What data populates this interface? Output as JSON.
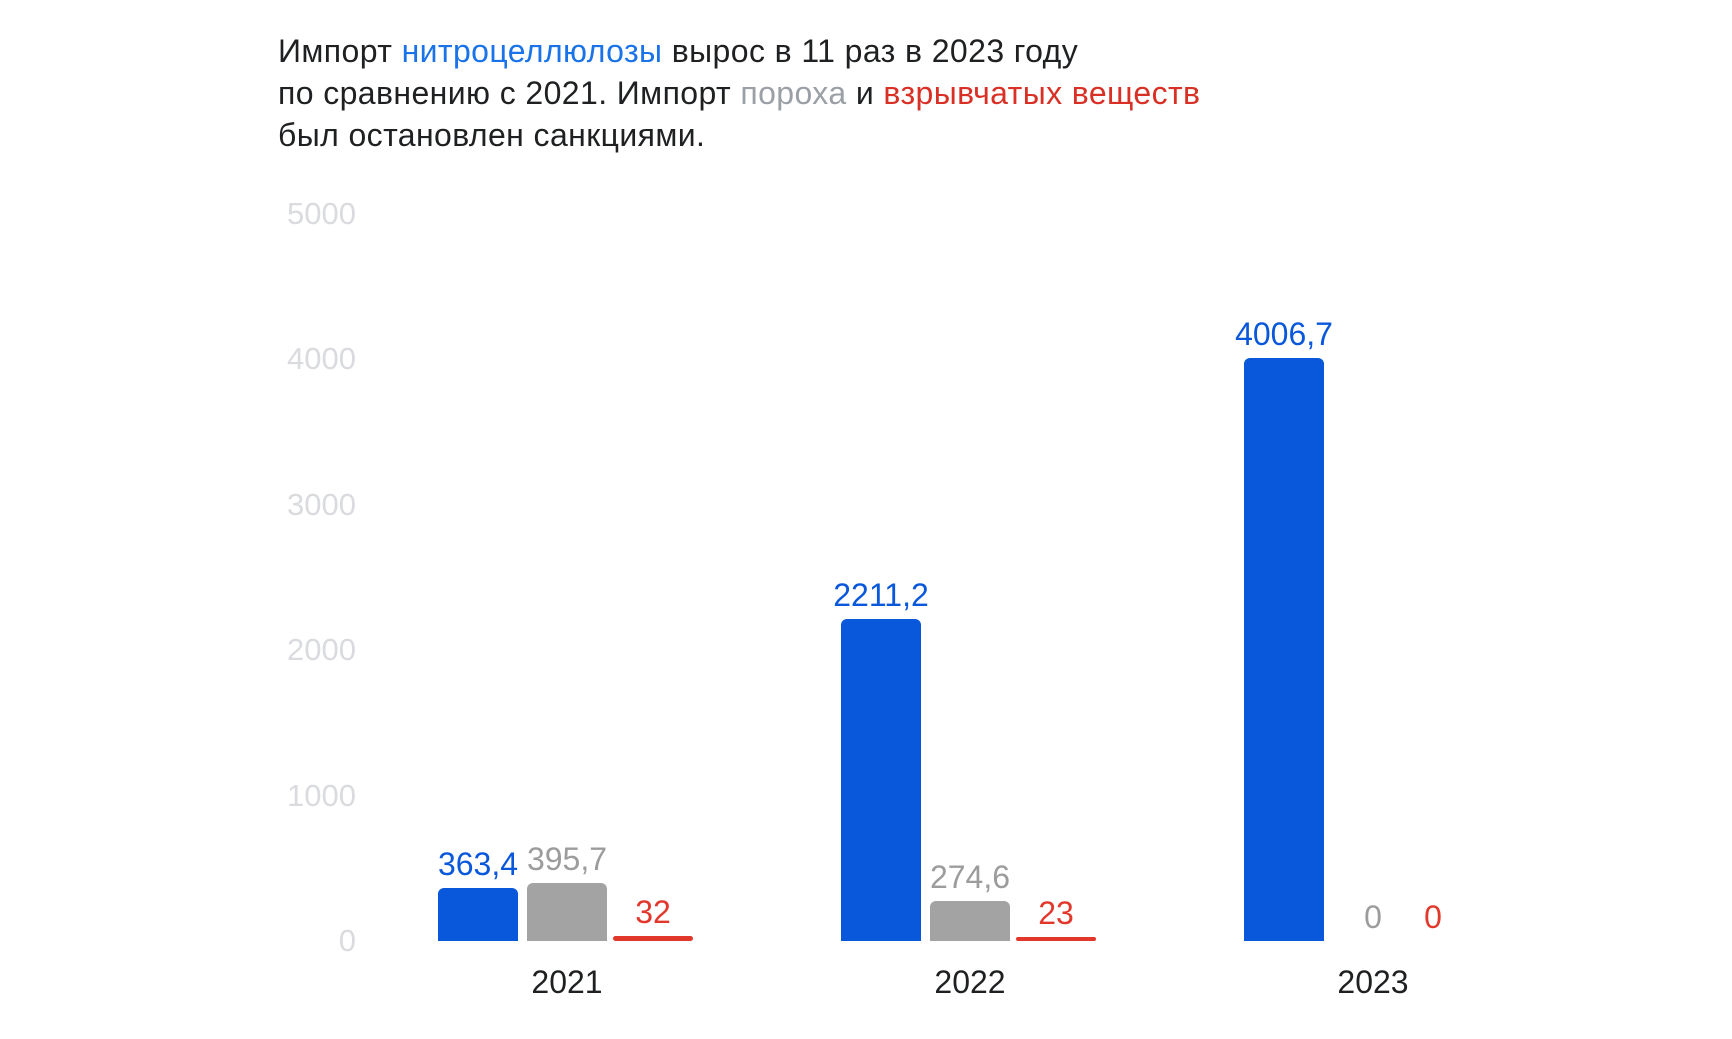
{
  "page": {
    "background": "#ffffff"
  },
  "title": {
    "full_text": "Импорт нитроцеллюлозы вырос в 11 раз в 2023 году по сравнению с 2021. Импорт пороха и взрывчатых веществ был остановлен санкциями.",
    "lines": [
      [
        {
          "text": "Импорт ",
          "color": "default"
        },
        {
          "text": "нитроцеллюлозы",
          "color": "blue"
        },
        {
          "text": " вырос в 11 раз в 2023 году",
          "color": "default"
        }
      ],
      [
        {
          "text": "по сравнению с 2021. Импорт ",
          "color": "default"
        },
        {
          "text": "пороха",
          "color": "gray"
        },
        {
          "text": " и ",
          "color": "default"
        },
        {
          "text": "взрывчатых веществ",
          "color": "red"
        }
      ],
      [
        {
          "text": "был остановлен санкциями.",
          "color": "default"
        }
      ]
    ],
    "colors": {
      "default": "#1e2022",
      "blue": "#1a73e8",
      "gray": "#9aa0a6",
      "red": "#d93025"
    }
  },
  "chart_data": {
    "type": "bar",
    "title": "Импорт нитроцеллюлозы вырос в 11 раз в 2023 году по сравнению с 2021. Импорт пороха и взрывчатых веществ был остановлен санкциями.",
    "categories": [
      "2021",
      "2022",
      "2023"
    ],
    "series": [
      {
        "key": "nitrocellulose",
        "name": "нитроцеллюлоза",
        "color": "#0957db",
        "label_color": "#0957db",
        "values": [
          363.4,
          2211.2,
          4006.7
        ],
        "value_labels": [
          "363,4",
          "2211,2",
          "4006,7"
        ]
      },
      {
        "key": "gunpowder",
        "name": "порох",
        "color": "#a3a3a3",
        "label_color": "#9c9c9c",
        "values": [
          395.7,
          274.6,
          0
        ],
        "value_labels": [
          "395,7",
          "274,6",
          "0"
        ]
      },
      {
        "key": "explosives",
        "name": "взрывчатые вещества",
        "color": "#e2382c",
        "label_color": "#e2382c",
        "values": [
          32,
          23,
          0
        ],
        "value_labels": [
          "32",
          "23",
          "0"
        ]
      }
    ],
    "y_axis": {
      "ticks": [
        5000,
        4000,
        3000,
        2000,
        1000,
        0
      ],
      "tick_labels": [
        "5000",
        "4000",
        "3000",
        "2000",
        "1000",
        "0"
      ],
      "tick_color": "#d9dbde",
      "range": [
        0,
        5000
      ]
    },
    "x_axis": {
      "labels": [
        "2021",
        "2022",
        "2023"
      ],
      "color": "#1e2022"
    },
    "grid": false,
    "legend": "none (series colors referenced by colored words in title)"
  }
}
